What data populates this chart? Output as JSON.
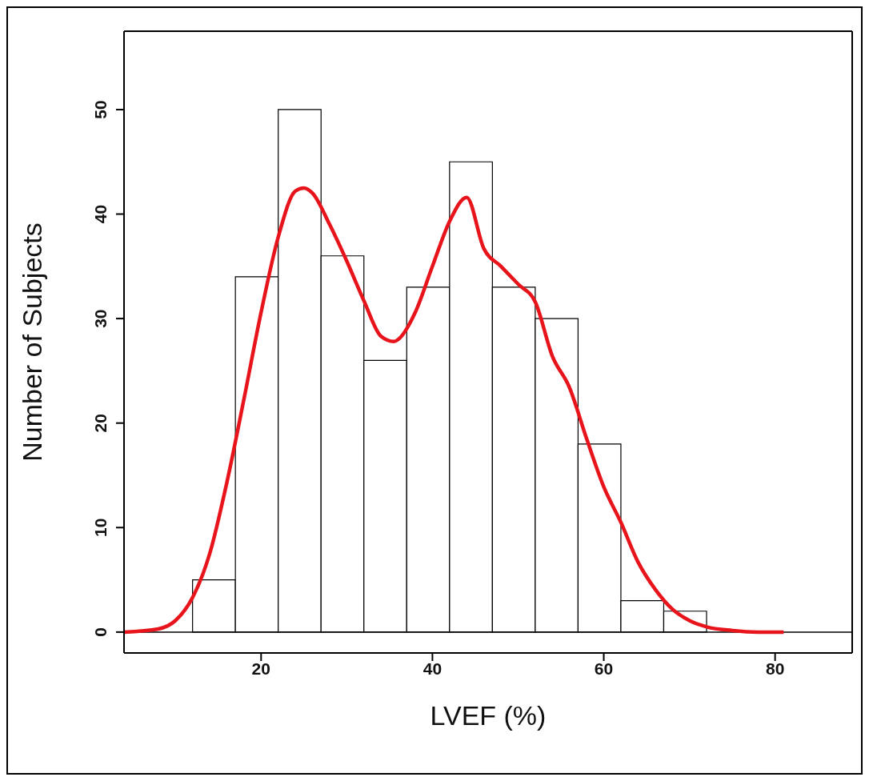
{
  "chart_data": {
    "type": "histogram",
    "xlabel": "LVEF (%)",
    "ylabel": "Number of Subjects",
    "series": [
      {
        "color": "#ffffff",
        "bins": [
          12,
          17,
          22,
          27,
          32,
          37,
          42,
          47,
          52,
          57,
          62,
          67,
          72
        ],
        "values": [
          5,
          34,
          50,
          36,
          26,
          33,
          45,
          33,
          30,
          18,
          3,
          2
        ]
      },
      {
        "type": "line",
        "color": "#e8141b",
        "x": [
          4,
          8,
          10,
          12,
          14,
          16,
          18,
          20,
          22,
          24,
          25,
          26,
          28,
          30,
          32,
          34,
          35.5,
          36,
          38,
          40,
          42,
          44,
          46,
          48,
          50,
          52,
          54,
          56,
          58,
          60,
          62,
          64,
          66,
          68,
          70,
          72,
          75,
          78,
          81
        ],
        "values": [
          0,
          0.3,
          1.1,
          3.3,
          7.5,
          14.3,
          22.3,
          30.6,
          37.8,
          42.2,
          42.5,
          42,
          39,
          35.5,
          31.7,
          28.3,
          27.8,
          28,
          30.6,
          35,
          39.3,
          41.6,
          36.7,
          35,
          33.3,
          31.6,
          26.4,
          23.4,
          18.5,
          13.9,
          10.5,
          6.7,
          4.1,
          2.2,
          1.1,
          0.5,
          0.15,
          0,
          0
        ]
      }
    ],
    "xlim": [
      4,
      89
    ],
    "ylim": [
      -2,
      57.5
    ],
    "xticks": [
      20,
      40,
      60,
      80
    ],
    "yticks": [
      0,
      10,
      20,
      30,
      40,
      50
    ],
    "ref_lines": [
      {
        "axis": "y",
        "value": 0,
        "color": "#000000"
      }
    ],
    "marker": "none",
    "line_style": "solid"
  }
}
